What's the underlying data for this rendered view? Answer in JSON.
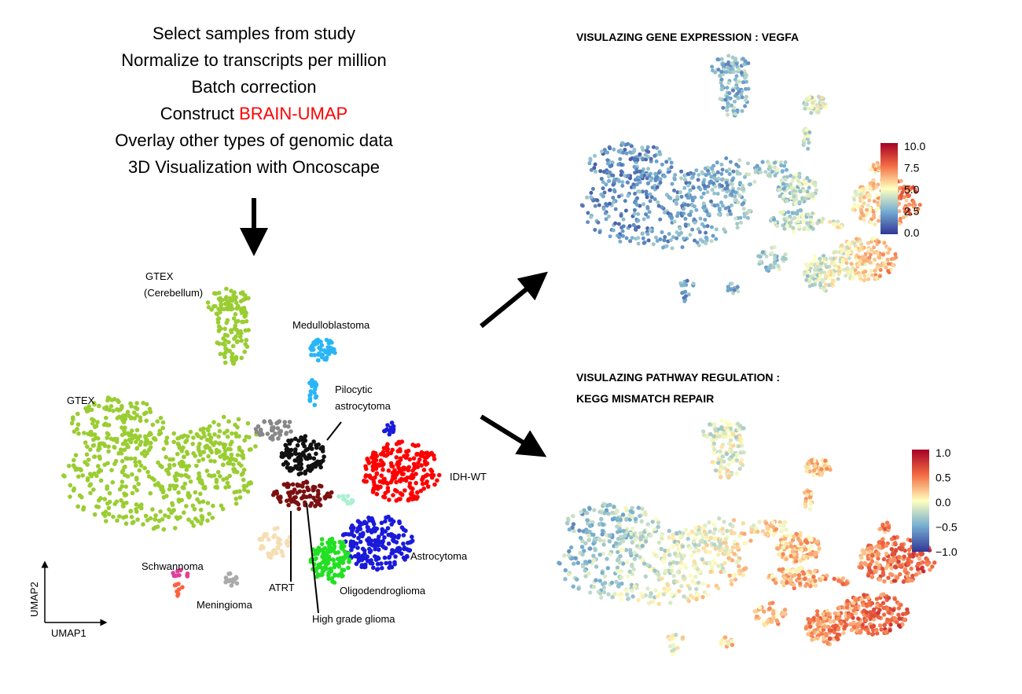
{
  "steps": [
    "Select samples from study",
    "Normalize to transcripts per million",
    "Batch correction",
    "Overlay other types of genomic data",
    "3D Visualization with Oncoscape"
  ],
  "construct": {
    "prefix": "Construct",
    "highlight": "BRAIN-UMAP"
  },
  "umap": {
    "x_label": "UMAP1",
    "y_label": "UMAP2",
    "clusters": [
      "GTEX",
      "(Cerebellum)",
      "Medulloblastoma",
      "Pilocytic",
      "astrocytoma",
      "GTEX",
      "IDH-WT",
      "Astrocytoma",
      "Schwannoma",
      "ATRT",
      "Oligodendroglioma",
      "Meningioma",
      "High grade glioma"
    ]
  },
  "panels": [
    {
      "title": [
        "VISULAZING GENE EXPRESSION : VEGFA"
      ],
      "colorbar": [
        "10.0",
        "7.5",
        "5.0",
        "2.5",
        "0.0"
      ]
    },
    {
      "title": [
        "VISULAZING PATHWAY REGULATION :",
        "KEGG MISMATCH REPAIR"
      ],
      "colorbar": [
        "1.0",
        "0.5",
        "0.0",
        "−0.5",
        "−1.0"
      ]
    }
  ]
}
